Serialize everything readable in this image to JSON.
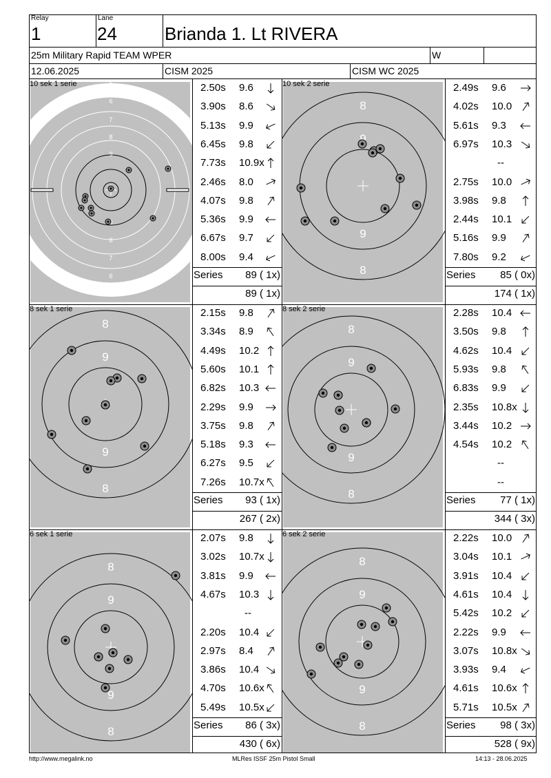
{
  "header": {
    "relay_label": "Relay",
    "relay": "1",
    "lane_label": "Lane",
    "lane": "24",
    "name": "Brianda 1. Lt RIVERA",
    "event": "25m Military Rapid TEAM WPER",
    "gender": "W",
    "date": "12.06.2025",
    "competition": "CISM 2025",
    "match": "CISM WC 2025"
  },
  "blocks": [
    {
      "left": {
        "title": "10 sek 1 serie",
        "ring_labels": [
          "5",
          "6",
          "7",
          "8",
          "9",
          "9",
          "8",
          "7",
          "6",
          "5"
        ],
        "shots": [
          {
            "t": "2.50s",
            "v": "9.6",
            "dir": "down"
          },
          {
            "t": "3.90s",
            "v": "8.6",
            "dir": "down-right"
          },
          {
            "t": "5.13s",
            "v": "9.9",
            "dir": "left-down"
          },
          {
            "t": "6.45s",
            "v": "9.8",
            "dir": "down-left"
          },
          {
            "t": "7.73s",
            "v": "10.9x",
            "dir": "up"
          },
          {
            "t": "2.46s",
            "v": "8.0",
            "dir": "right-up"
          },
          {
            "t": "4.07s",
            "v": "9.8",
            "dir": "up-right"
          },
          {
            "t": "5.36s",
            "v": "9.9",
            "dir": "left"
          },
          {
            "t": "6.67s",
            "v": "9.7",
            "dir": "down-left"
          },
          {
            "t": "8.00s",
            "v": "9.4",
            "dir": "left-down"
          }
        ],
        "series_label": "Series",
        "series": "89 ( 1x)",
        "total": "89 ( 1x)"
      },
      "right": {
        "title": "10 sek 2 serie",
        "ring_labels": [
          "8",
          "9",
          "9",
          "8"
        ],
        "shots": [
          {
            "t": "2.49s",
            "v": "9.6",
            "dir": "right"
          },
          {
            "t": "4.02s",
            "v": "10.0",
            "dir": "up-right"
          },
          {
            "t": "5.61s",
            "v": "9.3",
            "dir": "left"
          },
          {
            "t": "6.97s",
            "v": "10.3",
            "dir": "down-right"
          },
          {
            "t": "",
            "v": "--",
            "dir": ""
          },
          {
            "t": "2.75s",
            "v": "10.0",
            "dir": "right-up"
          },
          {
            "t": "3.98s",
            "v": "9.8",
            "dir": "up"
          },
          {
            "t": "2.44s",
            "v": "10.1",
            "dir": "down-left"
          },
          {
            "t": "5.16s",
            "v": "9.9",
            "dir": "up-right"
          },
          {
            "t": "7.80s",
            "v": "9.2",
            "dir": "left-down"
          }
        ],
        "series_label": "Series",
        "series": "85 ( 0x)",
        "total": "174 ( 1x)"
      }
    },
    {
      "left": {
        "title": "8 sek 1 serie",
        "ring_labels": [
          "8",
          "9",
          "9",
          "8"
        ],
        "shots": [
          {
            "t": "2.15s",
            "v": "9.8",
            "dir": "up-right"
          },
          {
            "t": "3.34s",
            "v": "8.9",
            "dir": "up-left"
          },
          {
            "t": "4.49s",
            "v": "10.2",
            "dir": "up"
          },
          {
            "t": "5.60s",
            "v": "10.1",
            "dir": "up"
          },
          {
            "t": "6.82s",
            "v": "10.3",
            "dir": "left"
          },
          {
            "t": "2.29s",
            "v": "9.9",
            "dir": "right"
          },
          {
            "t": "3.75s",
            "v": "9.8",
            "dir": "up-right"
          },
          {
            "t": "5.18s",
            "v": "9.3",
            "dir": "left"
          },
          {
            "t": "6.27s",
            "v": "9.5",
            "dir": "down-left"
          },
          {
            "t": "7.26s",
            "v": "10.7x",
            "dir": "up-left"
          }
        ],
        "series_label": "Series",
        "series": "93 ( 1x)",
        "total": "267 ( 2x)"
      },
      "right": {
        "title": "8 sek 2 serie",
        "ring_labels": [
          "8",
          "9",
          "9",
          "8"
        ],
        "shots": [
          {
            "t": "2.28s",
            "v": "10.4",
            "dir": "left"
          },
          {
            "t": "3.50s",
            "v": "9.8",
            "dir": "up"
          },
          {
            "t": "4.62s",
            "v": "10.4",
            "dir": "down-left"
          },
          {
            "t": "5.93s",
            "v": "9.8",
            "dir": "up-left"
          },
          {
            "t": "6.83s",
            "v": "9.9",
            "dir": "down-left"
          },
          {
            "t": "2.35s",
            "v": "10.8x",
            "dir": "down"
          },
          {
            "t": "3.44s",
            "v": "10.2",
            "dir": "right"
          },
          {
            "t": "4.54s",
            "v": "10.2",
            "dir": "up-left"
          },
          {
            "t": "",
            "v": "--",
            "dir": ""
          },
          {
            "t": "",
            "v": "--",
            "dir": ""
          }
        ],
        "series_label": "Series",
        "series": "77 ( 1x)",
        "total": "344 ( 3x)"
      }
    },
    {
      "left": {
        "title": "6 sek 1 serie",
        "ring_labels": [
          "8",
          "9",
          "9",
          "8"
        ],
        "shots": [
          {
            "t": "2.07s",
            "v": "9.8",
            "dir": "down"
          },
          {
            "t": "3.02s",
            "v": "10.7x",
            "dir": "down"
          },
          {
            "t": "3.81s",
            "v": "9.9",
            "dir": "left"
          },
          {
            "t": "4.67s",
            "v": "10.3",
            "dir": "down"
          },
          {
            "t": "",
            "v": "--",
            "dir": ""
          },
          {
            "t": "2.20s",
            "v": "10.4",
            "dir": "down-left"
          },
          {
            "t": "2.97s",
            "v": "8.4",
            "dir": "up-right"
          },
          {
            "t": "3.86s",
            "v": "10.4",
            "dir": "down-right"
          },
          {
            "t": "4.70s",
            "v": "10.6x",
            "dir": "up-left"
          },
          {
            "t": "5.49s",
            "v": "10.5x",
            "dir": "down-left"
          }
        ],
        "series_label": "Series",
        "series": "86 ( 3x)",
        "total": "430 ( 6x)"
      },
      "right": {
        "title": "6 sek 2 serie",
        "ring_labels": [
          "8",
          "9",
          "9",
          "8"
        ],
        "shots": [
          {
            "t": "2.22s",
            "v": "10.0",
            "dir": "up-right"
          },
          {
            "t": "3.04s",
            "v": "10.1",
            "dir": "right-up"
          },
          {
            "t": "3.91s",
            "v": "10.4",
            "dir": "down-left"
          },
          {
            "t": "4.61s",
            "v": "10.4",
            "dir": "down"
          },
          {
            "t": "5.42s",
            "v": "10.2",
            "dir": "down-left"
          },
          {
            "t": "2.22s",
            "v": "9.9",
            "dir": "left"
          },
          {
            "t": "3.07s",
            "v": "10.8x",
            "dir": "down-right"
          },
          {
            "t": "3.93s",
            "v": "9.4",
            "dir": "left-down"
          },
          {
            "t": "4.61s",
            "v": "10.6x",
            "dir": "up"
          },
          {
            "t": "5.71s",
            "v": "10.5x",
            "dir": "up-right"
          }
        ],
        "series_label": "Series",
        "series": "98 ( 3x)",
        "total": "528 ( 9x)"
      }
    }
  ],
  "footer": {
    "url": "http://www.megalink.no",
    "app": "MLRes ISSF 25m Pistol Small",
    "timestamp": "14:13 - 28.06.2025"
  },
  "colors": {
    "target_bg": "#c0c0c0",
    "shot_fill": "#8c8c8c"
  }
}
